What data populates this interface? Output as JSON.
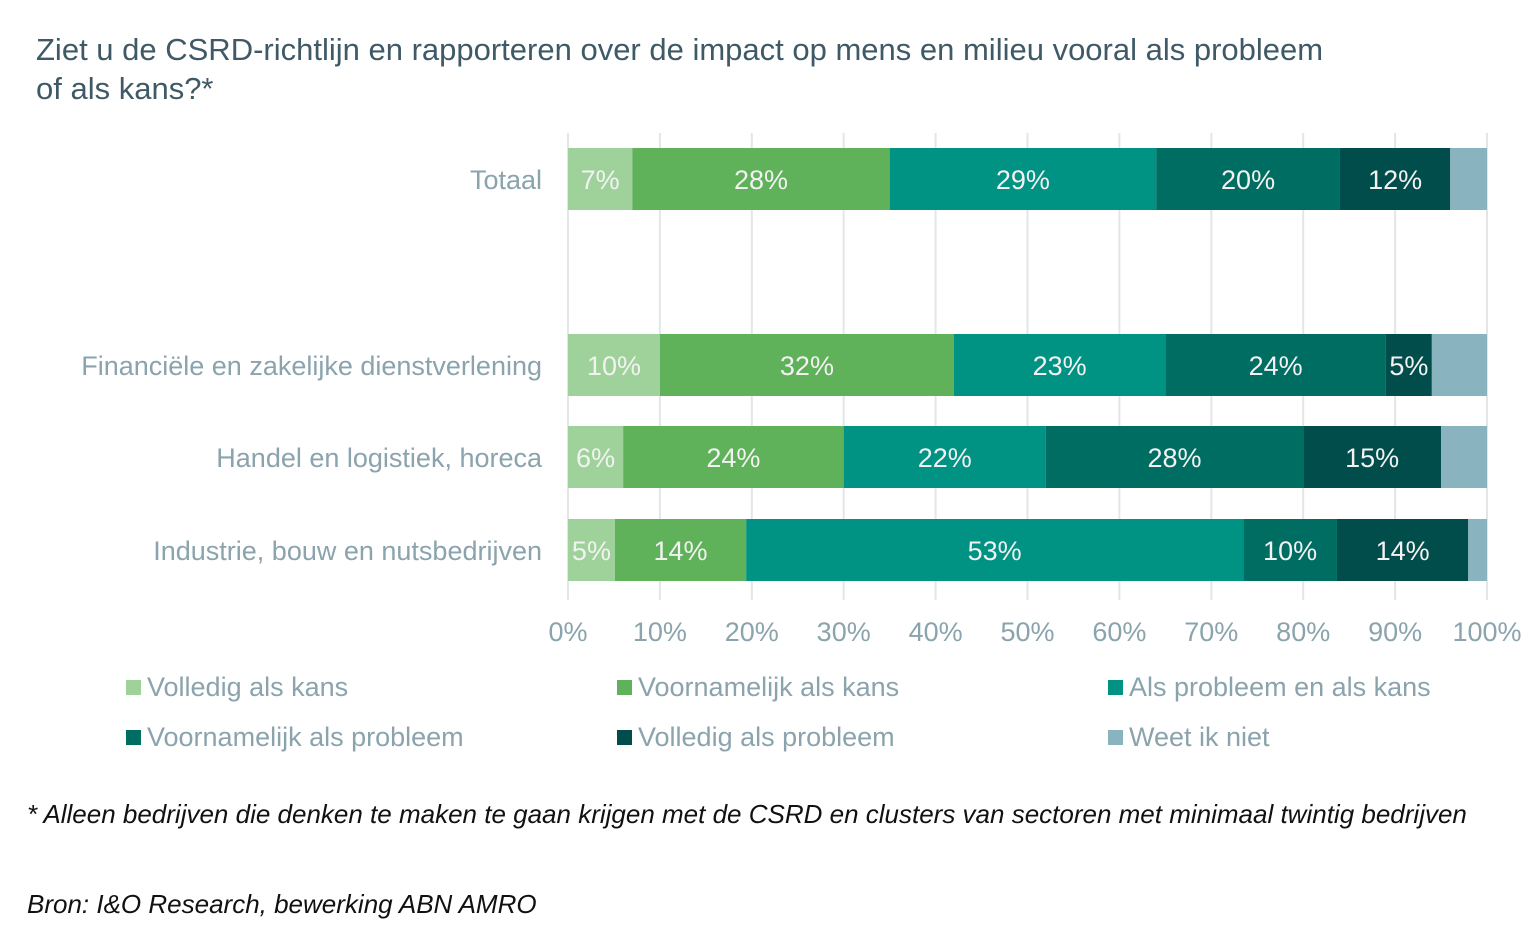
{
  "chart_data": {
    "type": "bar",
    "orientation": "horizontal",
    "stacked": true,
    "title": "Ziet u de CSRD-richtlijn en rapporteren over de impact op mens en milieu vooral als probleem of als kans?*",
    "categories": [
      "Totaal",
      "Financiële en zakelijke dienstverlening",
      "Handel en logistiek, horeca",
      "Industrie, bouw en nutsbedrijven"
    ],
    "series": [
      {
        "name": "Volledig als kans",
        "color": "#9fd29a",
        "values": [
          7,
          10,
          6,
          5
        ]
      },
      {
        "name": "Voornamelijk als kans",
        "color": "#5fb15a",
        "values": [
          28,
          32,
          24,
          14
        ]
      },
      {
        "name": "Als probleem en als kans",
        "color": "#009283",
        "values": [
          29,
          23,
          22,
          53
        ]
      },
      {
        "name": "Voornamelijk als probleem",
        "color": "#006d63",
        "values": [
          20,
          24,
          28,
          10
        ]
      },
      {
        "name": "Volledig als probleem",
        "color": "#004d4b",
        "values": [
          12,
          5,
          15,
          14
        ]
      },
      {
        "name": "Weet ik niet",
        "color": "#8ab3c0",
        "values": [
          4,
          6,
          5,
          2
        ],
        "labels_shown": false
      }
    ],
    "xlim": [
      0,
      100
    ],
    "xticks": [
      "0%",
      "10%",
      "20%",
      "30%",
      "40%",
      "50%",
      "60%",
      "70%",
      "80%",
      "90%",
      "100%"
    ],
    "grid": true,
    "legend_position": "bottom"
  },
  "footnote": "* Alleen bedrijven die denken te maken te gaan krijgen met de CSRD en clusters van sectoren met minimaal twintig bedrijven",
  "source": "Bron: I&O Research, bewerking ABN AMRO"
}
